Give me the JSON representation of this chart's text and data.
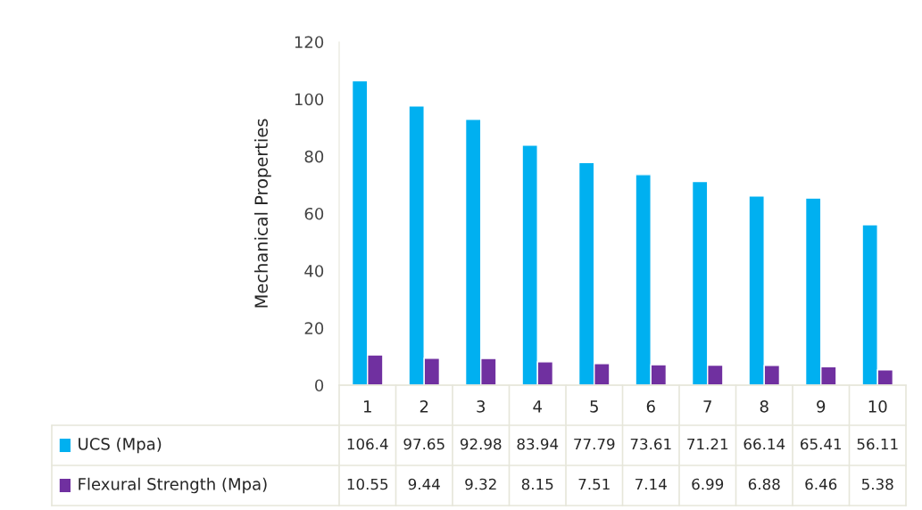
{
  "chart_data": {
    "type": "bar",
    "ylabel": "Mechanical Properties",
    "categories": [
      "1",
      "2",
      "3",
      "4",
      "5",
      "6",
      "7",
      "8",
      "9",
      "10"
    ],
    "series": [
      {
        "name": "UCS (Mpa)",
        "color": "#00b0f0",
        "values": [
          106.4,
          97.65,
          92.98,
          83.94,
          77.79,
          73.61,
          71.21,
          66.14,
          65.41,
          56.11
        ]
      },
      {
        "name": "Flexural Strength (Mpa)",
        "color": "#7030a0",
        "values": [
          10.55,
          9.44,
          9.32,
          8.15,
          7.51,
          7.14,
          6.99,
          6.88,
          6.46,
          5.38
        ]
      }
    ],
    "ylim": [
      0,
      120
    ],
    "yticks": [
      0,
      20,
      40,
      60,
      80,
      100,
      120
    ],
    "data_labels": true,
    "legend": "bottom",
    "grid": false
  }
}
